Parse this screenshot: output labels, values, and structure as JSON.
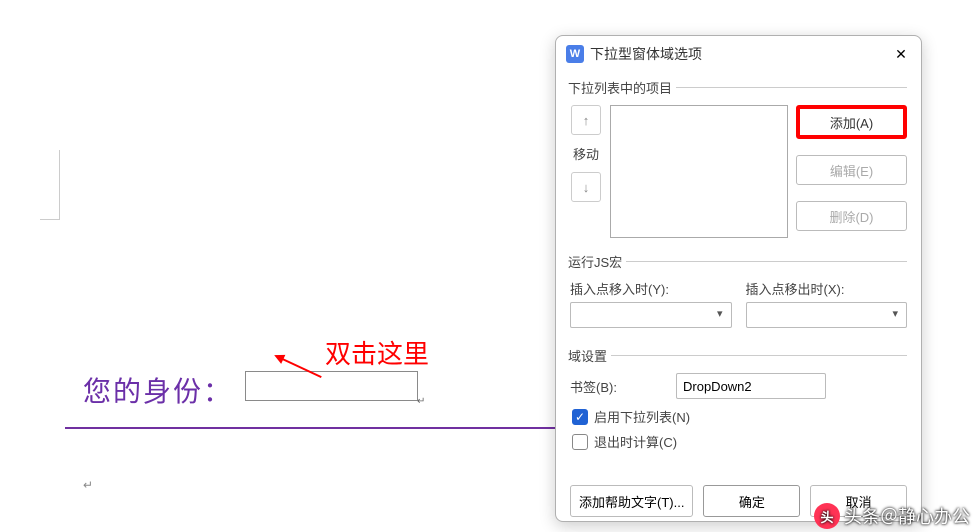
{
  "document": {
    "identity_label": "您的身份：",
    "annotation_text": "双击这里",
    "purple_line_color": "#7030a0",
    "label_color": "#6b2fa8"
  },
  "dialog": {
    "icon_letter": "W",
    "title": "下拉型窗体域选项",
    "close_glyph": "✕",
    "list_section": {
      "legend": "下拉列表中的项目",
      "move_label": "移动",
      "add_btn": "添加(A)",
      "edit_btn": "编辑(E)",
      "delete_btn": "删除(D)"
    },
    "macro_section": {
      "legend": "运行JS宏",
      "enter_label": "插入点移入时(Y):",
      "exit_label": "插入点移出时(X):"
    },
    "field_section": {
      "legend": "域设置",
      "bookmark_label": "书签(B):",
      "bookmark_value": "DropDown2",
      "enable_label": "启用下拉列表(N)",
      "calc_label": "退出时计算(C)",
      "enable_checked": true,
      "calc_checked": false
    },
    "footer": {
      "help_btn": "添加帮助文字(T)...",
      "ok_btn": "确定",
      "cancel_btn": "取消"
    }
  },
  "watermark": {
    "text": "头条＠静心办公",
    "icon_color": "#ff3355"
  },
  "colors": {
    "annotation_red": "#ff0000",
    "highlight_red": "#ff0000",
    "checkbox_blue": "#2062d4",
    "dialog_icon_bg": "#4a7ee8"
  }
}
